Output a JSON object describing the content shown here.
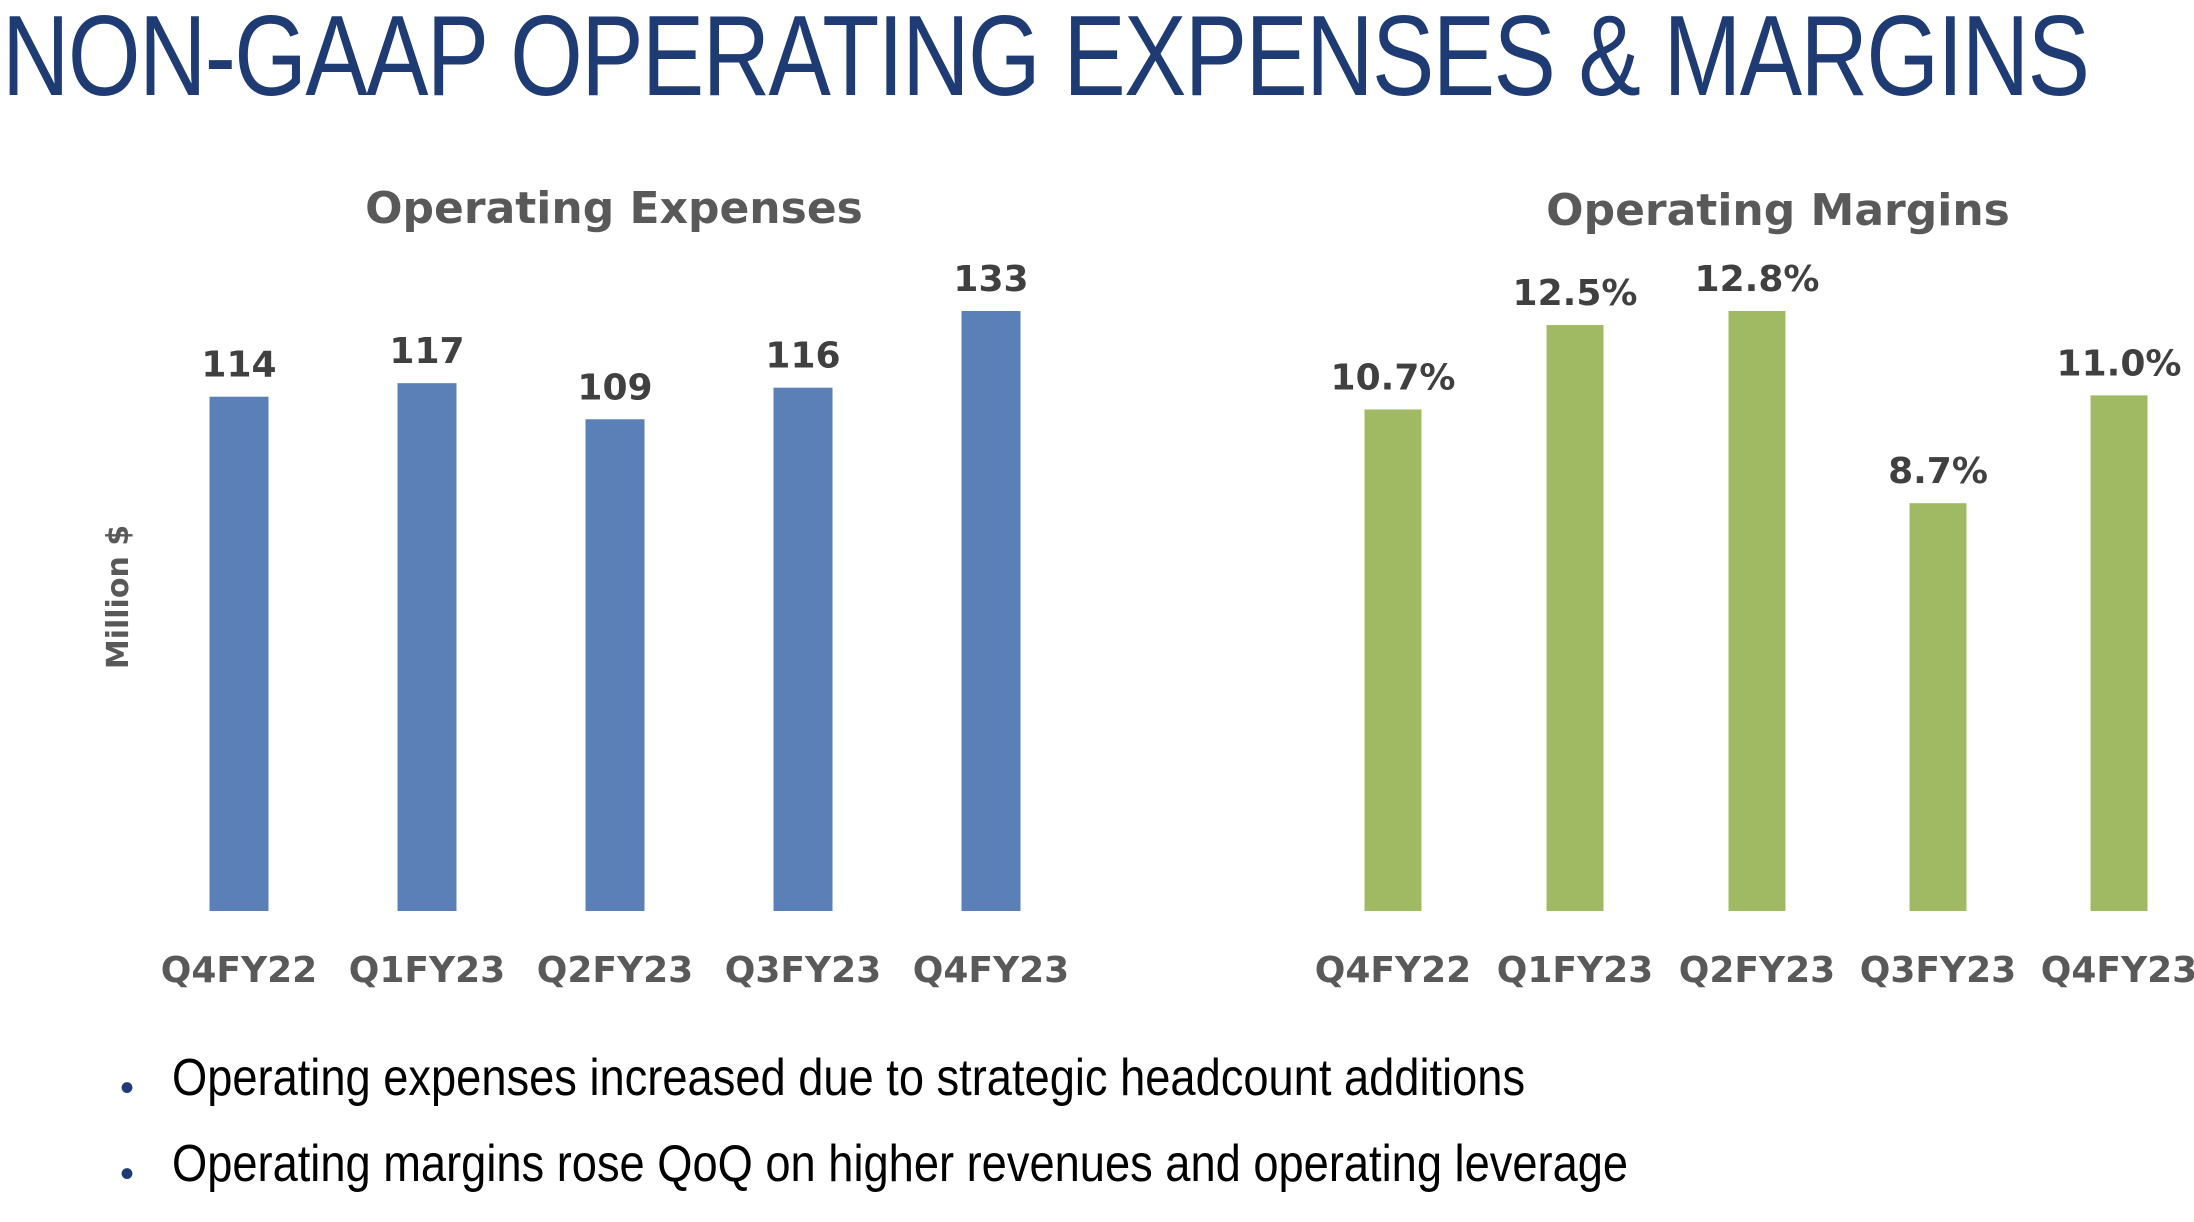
{
  "page": {
    "title": "NON-GAAP OPERATING EXPENSES & MARGINS"
  },
  "bullets": [
    "Operating expenses increased due to strategic headcount additions",
    "Operating margins rose QoQ on higher revenues and operating leverage"
  ],
  "colors": {
    "title": "#1F3B73",
    "expenses_bar": "#5B80B8",
    "margins_bar": "#A0BA64",
    "bullet": "#1F3B73"
  },
  "chart_data": [
    {
      "type": "bar",
      "title": "Operating Expenses",
      "ylabel": "Million $",
      "xlabel": "",
      "categories": [
        "Q4FY22",
        "Q1FY23",
        "Q2FY23",
        "Q3FY23",
        "Q4FY23"
      ],
      "values": [
        114,
        117,
        109,
        116,
        133
      ],
      "data_labels": [
        "114",
        "117",
        "109",
        "116",
        "133"
      ],
      "ylim": [
        0,
        133
      ],
      "grid": false,
      "legend": "none",
      "color": "#5B80B8"
    },
    {
      "type": "bar",
      "title": "Operating Margins",
      "ylabel": "",
      "xlabel": "",
      "categories": [
        "Q4FY22",
        "Q1FY23",
        "Q2FY23",
        "Q3FY23",
        "Q4FY23"
      ],
      "values": [
        10.7,
        12.5,
        12.8,
        8.7,
        11.0
      ],
      "data_labels": [
        "10.7%",
        "12.5%",
        "12.8%",
        "8.7%",
        "11.0%"
      ],
      "ylim": [
        0,
        12.8
      ],
      "grid": false,
      "legend": "none",
      "color": "#A0BA64"
    }
  ]
}
